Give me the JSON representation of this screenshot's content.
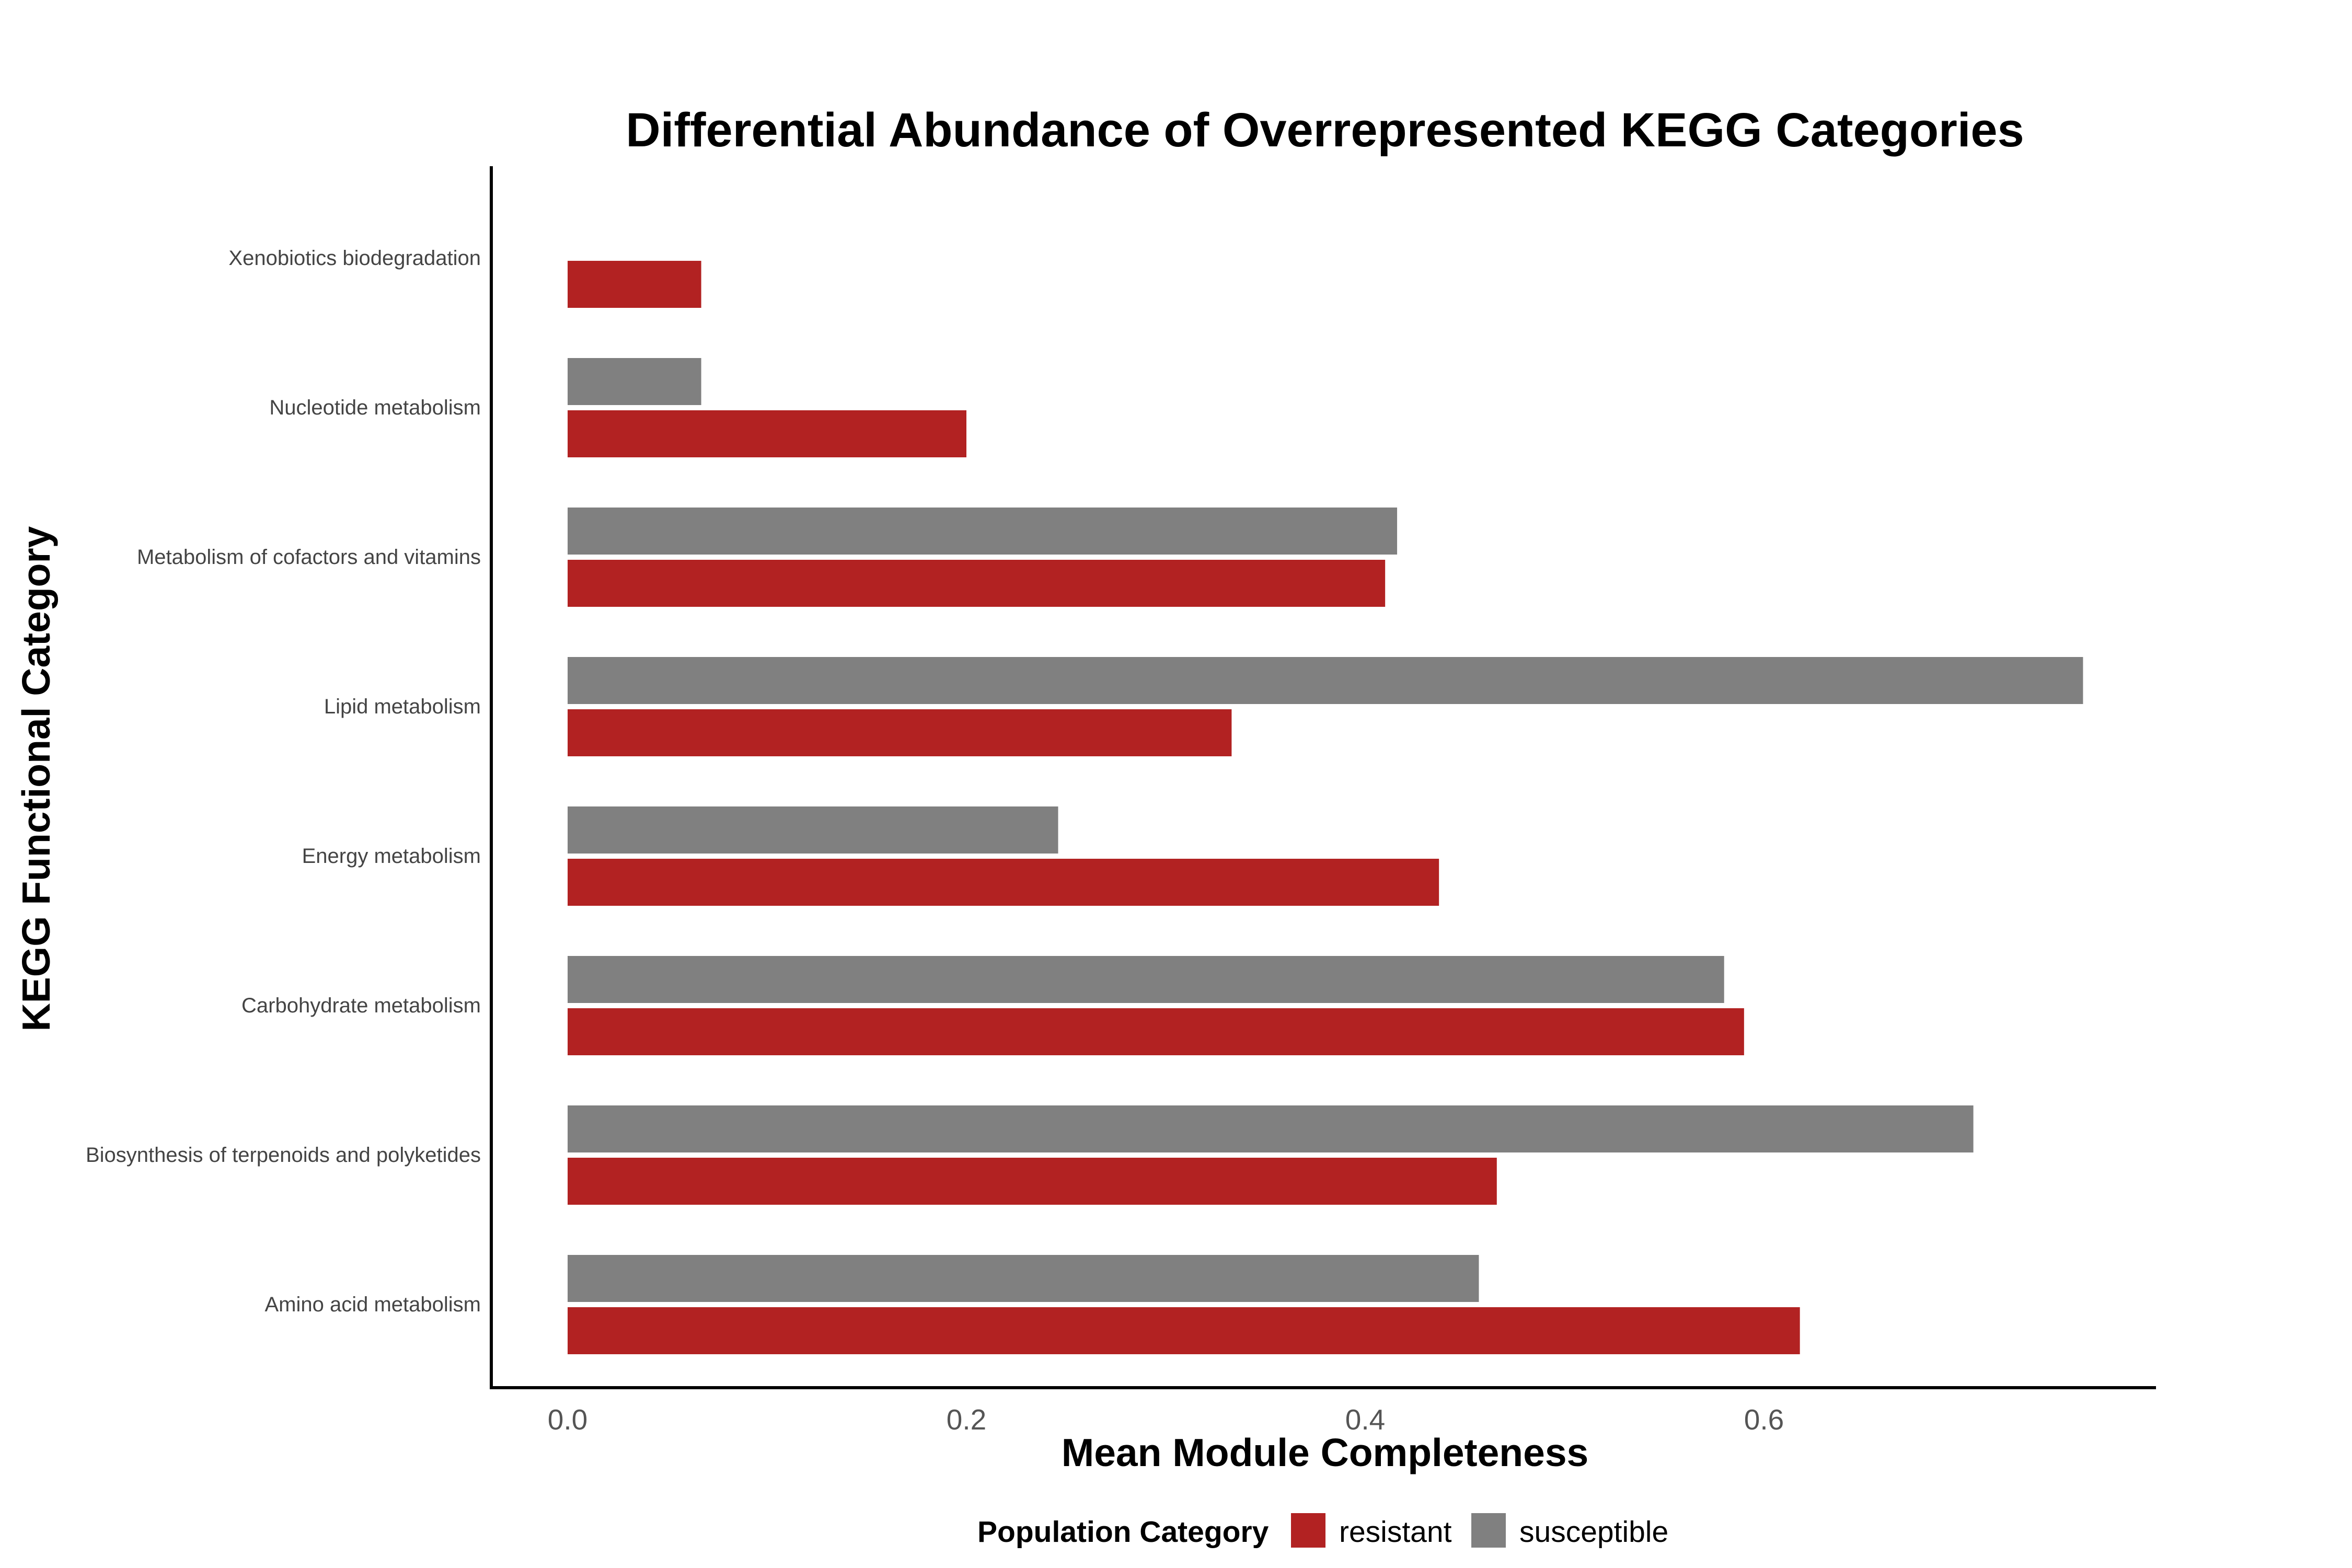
{
  "chart_data": {
    "type": "bar",
    "orientation": "horizontal",
    "title": "Differential Abundance of Overrepresented KEGG Categories",
    "xlabel": "Mean Module Completeness",
    "ylabel": "KEGG Functional Category",
    "xlim": [
      0,
      0.8
    ],
    "xticks": [
      "0.0",
      "0.2",
      "0.4",
      "0.6"
    ],
    "grid": false,
    "legend_position": "bottom",
    "categories": [
      "Xenobiotics biodegradation",
      "Nucleotide metabolism",
      "Metabolism of cofactors and vitamins",
      "Lipid metabolism",
      "Energy metabolism",
      "Carbohydrate metabolism",
      "Biosynthesis of terpenoids and polyketides",
      "Amino acid metabolism"
    ],
    "legend_title": "Population Category",
    "series": [
      {
        "name": "resistant",
        "color": "#B22222",
        "values": [
          0.067,
          0.2,
          0.41,
          0.333,
          0.437,
          0.59,
          0.466,
          0.618
        ]
      },
      {
        "name": "susceptible",
        "color": "#808080",
        "values": [
          null,
          0.067,
          0.416,
          0.76,
          0.246,
          0.58,
          0.705,
          0.457
        ]
      }
    ]
  }
}
